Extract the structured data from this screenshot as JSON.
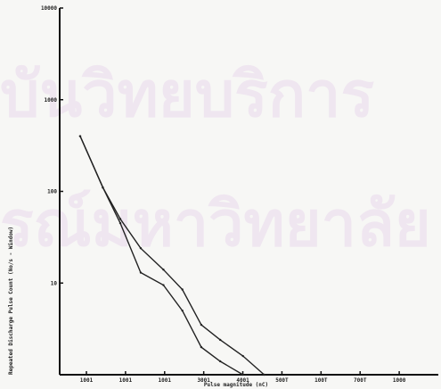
{
  "chart_data": {
    "type": "line",
    "xlabel": "Pulse magnitude (nC)",
    "ylabel": "Repeated Discharge Pulse Count (No/s - Window)",
    "x_scale": "linear",
    "y_scale": "log",
    "xlim": [
      0,
      500
    ],
    "ylim": [
      1,
      10000
    ],
    "x_ticks": [
      "1001",
      "1001",
      "1001",
      "3001",
      "4001",
      "500T",
      "100T",
      "700T",
      "1000"
    ],
    "y_ticks": [
      "10000",
      "1000",
      "100",
      "10"
    ],
    "series": [
      {
        "x": [
          27,
          57,
          80,
          107,
          137,
          162,
          187,
          212,
          242,
          270
        ],
        "y": [
          400,
          110,
          50,
          24,
          14,
          8.5,
          3.5,
          2.4,
          1.6,
          1
        ]
      },
      {
        "x": [
          27,
          57,
          80,
          107,
          137,
          162,
          187,
          212,
          242
        ],
        "y": [
          400,
          110,
          45,
          13,
          9.5,
          5,
          2,
          1.4,
          1
        ]
      }
    ]
  },
  "watermark": {
    "line1": "บันวิทยบริการ",
    "line2": "รณ์มหาวิทยาลัย"
  }
}
